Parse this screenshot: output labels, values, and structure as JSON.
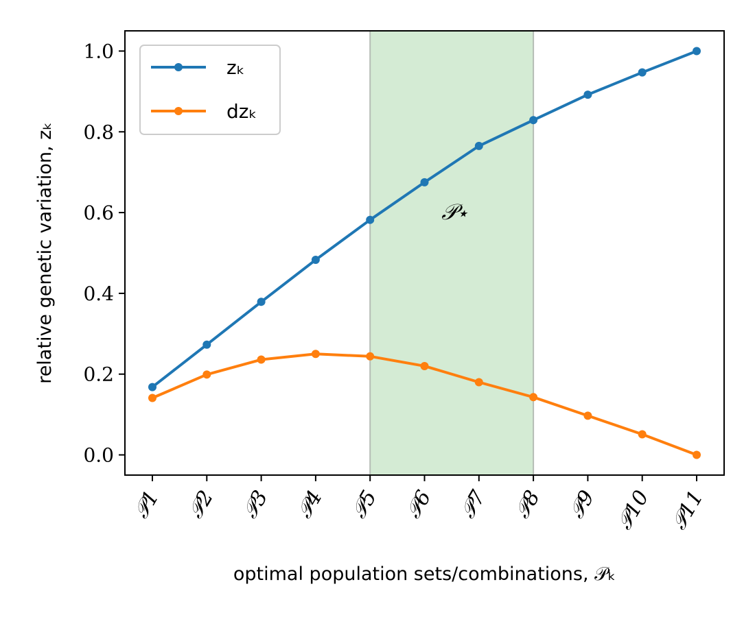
{
  "chart_data": {
    "type": "line",
    "categories": [
      "𝒫1",
      "𝒫2",
      "𝒫3",
      "𝒫4",
      "𝒫5",
      "𝒫6",
      "𝒫7",
      "𝒫8",
      "𝒫9",
      "𝒫10",
      "𝒫11"
    ],
    "series": [
      {
        "name": "z_k",
        "legend_label": "zₖ",
        "color": "#1f77b4",
        "values": [
          0.168,
          0.273,
          0.379,
          0.483,
          0.582,
          0.675,
          0.765,
          0.829,
          0.892,
          0.947,
          1.0
        ]
      },
      {
        "name": "dz_k",
        "legend_label": "dzₖ",
        "color": "#ff7f0e",
        "values": [
          0.141,
          0.199,
          0.236,
          0.25,
          0.244,
          0.22,
          0.18,
          0.143,
          0.097,
          0.051,
          0.0
        ]
      }
    ],
    "highlight_region": {
      "from_index": 4,
      "to_index": 7,
      "color": "#d4ebd4",
      "label": "𝒫⋆"
    },
    "xlabel": "optimal population sets/combinations, 𝒫ₖ",
    "ylabel": "relative genetic variation, zₖ",
    "ylim": [
      -0.05,
      1.05
    ],
    "yticks": [
      0.0,
      0.2,
      0.4,
      0.6,
      0.8,
      1.0
    ],
    "ytick_labels": [
      "0.0",
      "0.2",
      "0.4",
      "0.6",
      "0.8",
      "1.0"
    ],
    "legend_position": "upper-left",
    "grid": false
  }
}
